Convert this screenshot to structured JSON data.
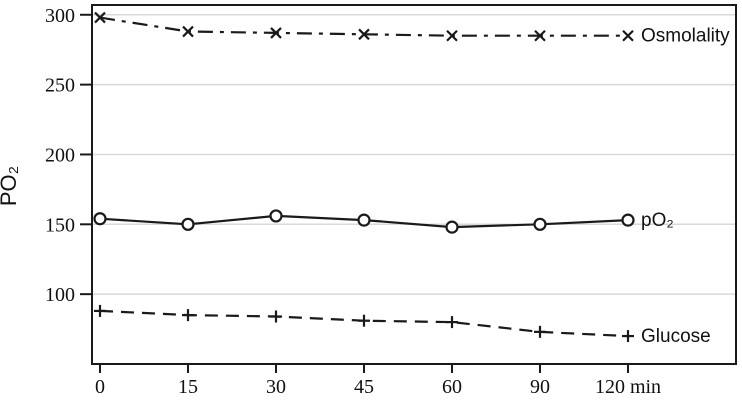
{
  "chart_data": {
    "type": "line",
    "title": "",
    "ylabel": "PO₂",
    "categories": [
      "0",
      "15",
      "30",
      "45",
      "60",
      "90",
      "120 min"
    ],
    "y_ticks": [
      100,
      150,
      200,
      250,
      300
    ],
    "ylim": [
      50,
      307
    ],
    "grid": "horizontal",
    "legend_position": "end-of-line inline labels",
    "line_color": "#1a1a1a",
    "grid_color": "#d9d9d9",
    "background": "#ffffff",
    "series": [
      {
        "name": "Osmolality",
        "marker": "x",
        "line_style": "dash-dot",
        "values": [
          298,
          288,
          287,
          286,
          285,
          285,
          285
        ]
      },
      {
        "name": "pO₂",
        "marker": "circle",
        "line_style": "solid",
        "values": [
          154,
          150,
          156,
          153,
          148,
          150,
          153
        ]
      },
      {
        "name": "Glucose",
        "marker": "plus",
        "line_style": "dashed",
        "values": [
          88,
          85,
          84,
          81,
          80,
          73,
          70
        ]
      }
    ]
  }
}
